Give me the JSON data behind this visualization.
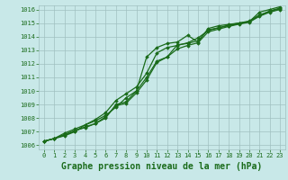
{
  "title": "Graphe pression niveau de la mer (hPa)",
  "x_values": [
    0,
    1,
    2,
    3,
    4,
    5,
    6,
    7,
    8,
    9,
    10,
    11,
    12,
    13,
    14,
    15,
    16,
    17,
    18,
    19,
    20,
    21,
    22,
    23
  ],
  "lines": [
    [
      1006.3,
      1006.5,
      1006.7,
      1007.0,
      1007.5,
      1007.8,
      1008.2,
      1008.8,
      1009.5,
      1010.0,
      1012.5,
      1013.2,
      1013.5,
      1013.6,
      1014.1,
      1013.6,
      1014.6,
      1014.8,
      1014.9,
      1015.0,
      1015.1,
      1015.8,
      1016.0,
      1016.2
    ],
    [
      1006.3,
      1006.5,
      1006.8,
      1007.1,
      1007.3,
      1007.6,
      1008.0,
      1009.0,
      1009.2,
      1010.0,
      1011.0,
      1012.2,
      1012.5,
      1013.4,
      1013.5,
      1013.7,
      1014.5,
      1014.65,
      1014.85,
      1015.0,
      1015.15,
      1015.6,
      1015.85,
      1016.05
    ],
    [
      1006.3,
      1006.5,
      1006.9,
      1007.2,
      1007.5,
      1007.9,
      1008.4,
      1009.3,
      1009.8,
      1010.3,
      1011.3,
      1012.8,
      1013.2,
      1013.35,
      1013.55,
      1013.9,
      1014.45,
      1014.65,
      1014.8,
      1014.95,
      1015.1,
      1015.55,
      1015.9,
      1016.1
    ],
    [
      1006.3,
      1006.5,
      1006.75,
      1007.05,
      1007.35,
      1007.6,
      1008.1,
      1008.9,
      1009.1,
      1009.85,
      1010.8,
      1012.1,
      1012.5,
      1013.1,
      1013.35,
      1013.55,
      1014.35,
      1014.55,
      1014.75,
      1014.92,
      1015.06,
      1015.5,
      1015.8,
      1016.0
    ]
  ],
  "line_color": "#1a6b1a",
  "marker": "D",
  "marker_size": 1.8,
  "bg_color": "#c8e8e8",
  "grid_color": "#a0c0c0",
  "text_color": "#1a6b1a",
  "ylim": [
    1006,
    1016
  ],
  "yticks": [
    1006,
    1007,
    1008,
    1009,
    1010,
    1011,
    1012,
    1013,
    1014,
    1015,
    1016
  ],
  "xlim": [
    -0.5,
    23.5
  ],
  "xticks": [
    0,
    1,
    2,
    3,
    4,
    5,
    6,
    7,
    8,
    9,
    10,
    11,
    12,
    13,
    14,
    15,
    16,
    17,
    18,
    19,
    20,
    21,
    22,
    23
  ],
  "line_width": 0.9,
  "title_fontsize": 7.0,
  "tick_fontsize": 5.0
}
